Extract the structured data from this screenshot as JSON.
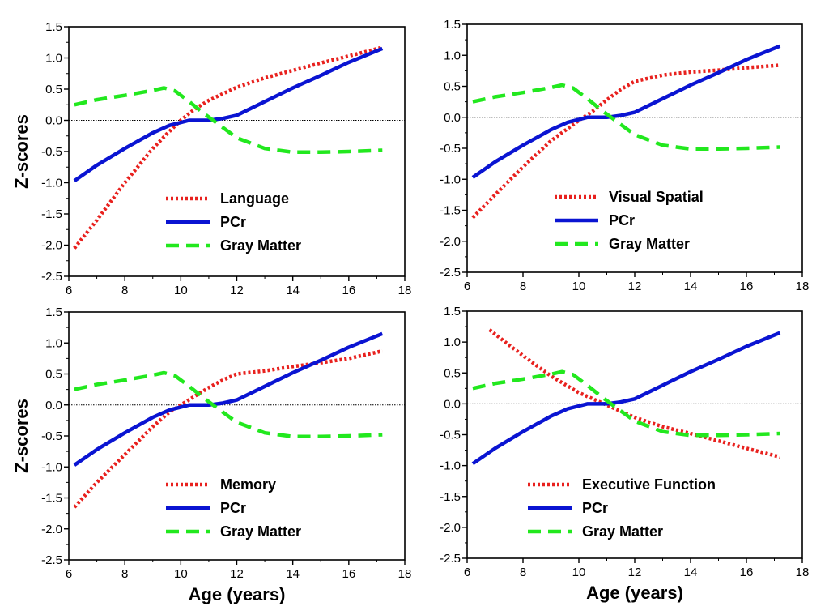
{
  "colors": {
    "cognitive": "#e8211e",
    "pcr": "#0a14d2",
    "gray_matter": "#22e81e",
    "axis": "#000000"
  },
  "chart_data": [
    {
      "type": "line",
      "panel": "top-left",
      "xlabel": "",
      "ylabel": "Z-scores",
      "xlim": [
        6,
        18
      ],
      "ylim": [
        -2.5,
        1.5
      ],
      "xticks": [
        "6",
        "8",
        "10",
        "12",
        "14",
        "16",
        "18"
      ],
      "yticks": [
        "-2.5",
        "-2.0",
        "-1.5",
        "-1.0",
        "-0.5",
        "0.0",
        "0.5",
        "1.0",
        "1.5"
      ],
      "reference_line_y": 0,
      "legend_position": "bottom-center",
      "series": [
        {
          "name": "Language",
          "style": "dotted",
          "color_key": "cognitive",
          "x": [
            6.2,
            7,
            8,
            9,
            9.5,
            10,
            10.5,
            11,
            12,
            13,
            14,
            15,
            16,
            17.2
          ],
          "y": [
            -2.05,
            -1.6,
            -1.0,
            -0.45,
            -0.22,
            0.0,
            0.18,
            0.32,
            0.53,
            0.68,
            0.8,
            0.92,
            1.03,
            1.17
          ]
        },
        {
          "name": "PCr",
          "style": "solid",
          "color_key": "pcr",
          "x": [
            6.2,
            7,
            8,
            9,
            9.6,
            10.3,
            11,
            11.5,
            12,
            13,
            14,
            15,
            16,
            17.2
          ],
          "y": [
            -0.97,
            -0.72,
            -0.45,
            -0.2,
            -0.08,
            0.0,
            0.0,
            0.03,
            0.08,
            0.3,
            0.52,
            0.72,
            0.93,
            1.15
          ]
        },
        {
          "name": "Gray Matter",
          "style": "dashed",
          "color_key": "gray_matter",
          "x": [
            6.2,
            7,
            8,
            9,
            9.4,
            9.8,
            10.3,
            10.8,
            11.3,
            12,
            13,
            14,
            15,
            16,
            17.2
          ],
          "y": [
            0.25,
            0.33,
            0.4,
            0.48,
            0.52,
            0.47,
            0.3,
            0.12,
            -0.05,
            -0.28,
            -0.45,
            -0.51,
            -0.51,
            -0.5,
            -0.48
          ]
        }
      ]
    },
    {
      "type": "line",
      "panel": "top-right",
      "xlabel": "",
      "ylabel": "",
      "xlim": [
        6,
        18
      ],
      "ylim": [
        -2.5,
        1.5
      ],
      "xticks": [
        "6",
        "8",
        "10",
        "12",
        "14",
        "16",
        "18"
      ],
      "yticks": [
        "-2.5",
        "-2.0",
        "-1.5",
        "-1.0",
        "-0.5",
        "0.0",
        "0.5",
        "1.0",
        "1.5"
      ],
      "reference_line_y": 0,
      "legend_position": "bottom-center",
      "series": [
        {
          "name": "Visual Spatial",
          "style": "dotted",
          "color_key": "cognitive",
          "x": [
            6.2,
            7,
            8,
            9,
            10,
            10.5,
            11,
            11.5,
            12,
            13,
            14,
            15,
            16,
            17.2
          ],
          "y": [
            -1.62,
            -1.25,
            -0.8,
            -0.38,
            -0.05,
            0.1,
            0.28,
            0.45,
            0.58,
            0.68,
            0.73,
            0.76,
            0.8,
            0.84
          ]
        },
        {
          "name": "PCr",
          "style": "solid",
          "color_key": "pcr",
          "x": [
            6.2,
            7,
            8,
            9,
            9.6,
            10.3,
            11,
            11.5,
            12,
            13,
            14,
            15,
            16,
            17.2
          ],
          "y": [
            -0.97,
            -0.72,
            -0.45,
            -0.2,
            -0.08,
            0.0,
            0.0,
            0.03,
            0.08,
            0.3,
            0.52,
            0.72,
            0.93,
            1.15
          ]
        },
        {
          "name": "Gray Matter",
          "style": "dashed",
          "color_key": "gray_matter",
          "x": [
            6.2,
            7,
            8,
            9,
            9.4,
            9.8,
            10.3,
            10.8,
            11.3,
            12,
            13,
            14,
            15,
            16,
            17.2
          ],
          "y": [
            0.25,
            0.33,
            0.4,
            0.48,
            0.52,
            0.47,
            0.3,
            0.12,
            -0.05,
            -0.28,
            -0.45,
            -0.51,
            -0.51,
            -0.5,
            -0.48
          ]
        }
      ]
    },
    {
      "type": "line",
      "panel": "bottom-left",
      "xlabel": "Age (years)",
      "ylabel": "Z-scores",
      "xlim": [
        6,
        18
      ],
      "ylim": [
        -2.5,
        1.5
      ],
      "xticks": [
        "6",
        "8",
        "10",
        "12",
        "14",
        "16",
        "18"
      ],
      "yticks": [
        "-2.5",
        "-2.0",
        "-1.5",
        "-1.0",
        "-0.5",
        "0.0",
        "0.5",
        "1.0",
        "1.5"
      ],
      "reference_line_y": 0,
      "legend_position": "bottom-center",
      "series": [
        {
          "name": "Memory",
          "style": "dotted",
          "color_key": "cognitive",
          "x": [
            6.2,
            7,
            8,
            9,
            9.5,
            10,
            10.5,
            11,
            11.5,
            12,
            13,
            14,
            15,
            16,
            17.2
          ],
          "y": [
            -1.65,
            -1.25,
            -0.8,
            -0.35,
            -0.15,
            0.0,
            0.14,
            0.28,
            0.4,
            0.5,
            0.55,
            0.62,
            0.68,
            0.75,
            0.87
          ]
        },
        {
          "name": "PCr",
          "style": "solid",
          "color_key": "pcr",
          "x": [
            6.2,
            7,
            8,
            9,
            9.6,
            10.3,
            11,
            11.5,
            12,
            13,
            14,
            15,
            16,
            17.2
          ],
          "y": [
            -0.97,
            -0.72,
            -0.45,
            -0.2,
            -0.08,
            0.0,
            0.0,
            0.03,
            0.08,
            0.3,
            0.52,
            0.72,
            0.93,
            1.15
          ]
        },
        {
          "name": "Gray Matter",
          "style": "dashed",
          "color_key": "gray_matter",
          "x": [
            6.2,
            7,
            8,
            9,
            9.4,
            9.8,
            10.3,
            10.8,
            11.3,
            12,
            13,
            14,
            15,
            16,
            17.2
          ],
          "y": [
            0.25,
            0.33,
            0.4,
            0.48,
            0.52,
            0.47,
            0.3,
            0.12,
            -0.05,
            -0.28,
            -0.45,
            -0.51,
            -0.51,
            -0.5,
            -0.48
          ]
        }
      ]
    },
    {
      "type": "line",
      "panel": "bottom-right",
      "xlabel": "Age (years)",
      "ylabel": "",
      "xlim": [
        6,
        18
      ],
      "ylim": [
        -2.5,
        1.5
      ],
      "xticks": [
        "6",
        "8",
        "10",
        "12",
        "14",
        "16",
        "18"
      ],
      "yticks": [
        "-2.5",
        "-2.0",
        "-1.5",
        "-1.0",
        "-0.5",
        "0.0",
        "0.5",
        "1.0",
        "1.5"
      ],
      "reference_line_y": 0,
      "legend_position": "bottom-center",
      "series": [
        {
          "name": "Executive Function",
          "style": "dotted",
          "color_key": "cognitive",
          "x": [
            6.8,
            7.5,
            8,
            9,
            10,
            11,
            12,
            13,
            14,
            15,
            16,
            17.2
          ],
          "y": [
            1.2,
            0.95,
            0.78,
            0.45,
            0.18,
            -0.02,
            -0.22,
            -0.37,
            -0.48,
            -0.6,
            -0.72,
            -0.86
          ]
        },
        {
          "name": "PCr",
          "style": "solid",
          "color_key": "pcr",
          "x": [
            6.2,
            7,
            8,
            9,
            9.6,
            10.3,
            11,
            11.5,
            12,
            13,
            14,
            15,
            16,
            17.2
          ],
          "y": [
            -0.97,
            -0.72,
            -0.45,
            -0.2,
            -0.08,
            0.0,
            0.0,
            0.03,
            0.08,
            0.3,
            0.52,
            0.72,
            0.93,
            1.15
          ]
        },
        {
          "name": "Gray Matter",
          "style": "dashed",
          "color_key": "gray_matter",
          "x": [
            6.2,
            7,
            8,
            9,
            9.4,
            9.8,
            10.3,
            10.8,
            11.3,
            12,
            13,
            14,
            15,
            16,
            17.2
          ],
          "y": [
            0.25,
            0.33,
            0.4,
            0.48,
            0.52,
            0.47,
            0.3,
            0.12,
            -0.05,
            -0.28,
            -0.45,
            -0.51,
            -0.51,
            -0.5,
            -0.48
          ]
        }
      ]
    }
  ]
}
